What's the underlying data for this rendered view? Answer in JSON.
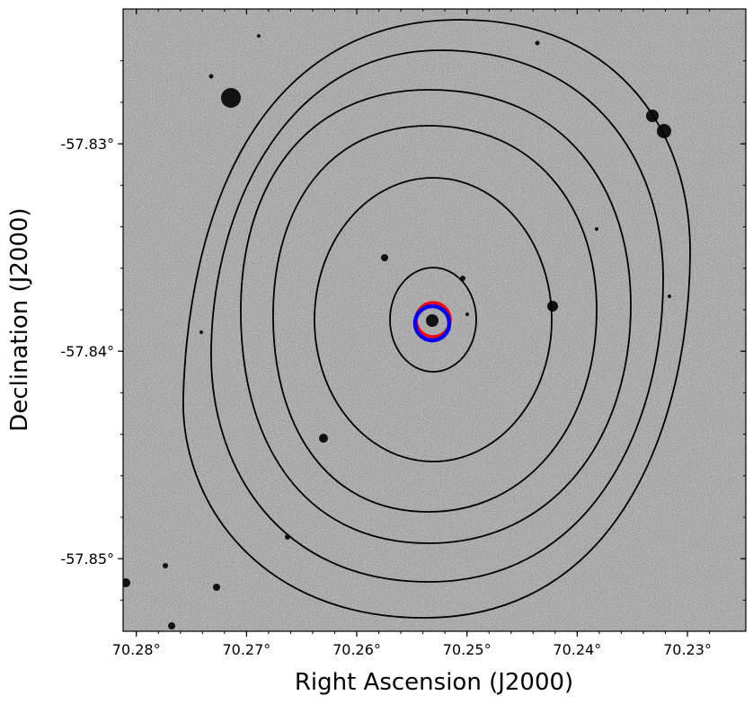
{
  "figure": {
    "xlabel": "Right Ascension (J2000)",
    "ylabel": "Declination (J2000)",
    "x_ticks": [
      {
        "value": 70.28,
        "label": "70.28°"
      },
      {
        "value": 70.27,
        "label": "70.27°"
      },
      {
        "value": 70.26,
        "label": "70.26°"
      },
      {
        "value": 70.25,
        "label": "70.25°"
      },
      {
        "value": 70.24,
        "label": "70.24°"
      },
      {
        "value": 70.23,
        "label": "70.23°"
      }
    ],
    "y_ticks": [
      {
        "value": -57.85,
        "label": "-57.85°"
      },
      {
        "value": -57.84,
        "label": "-57.84°"
      },
      {
        "value": -57.83,
        "label": "-57.83°"
      }
    ],
    "x_range_deg": [
      70.2812,
      70.2247
    ],
    "y_range_deg": [
      -57.8535,
      -57.8235
    ],
    "background": "grayscale optical noise image",
    "contour_color": "#000000",
    "contour_count": 6,
    "markers": [
      {
        "shape": "circle",
        "color": "#ff0000"
      },
      {
        "shape": "circle",
        "color": "#0000ff"
      }
    ]
  }
}
